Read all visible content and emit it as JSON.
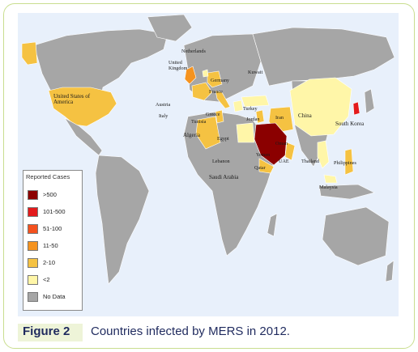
{
  "colors": {
    "gt500": "#8b0000",
    "c101_500": "#e31a1c",
    "c51_100": "#f4511e",
    "c11_50": "#f5931f",
    "c2_10": "#f5c242",
    "lt2": "#fff6a8",
    "no_data": "#a6a6a6",
    "ocean": "#e8f0fb",
    "caption_text": "#1f2a5e",
    "caption_bg": "#eef4d8",
    "frame_border": "#c9de8f"
  },
  "legend": {
    "title": "Reported Cases",
    "items": [
      {
        "label": ">500",
        "color": "#8b0000"
      },
      {
        "label": "101-500",
        "color": "#e31a1c"
      },
      {
        "label": "51-100",
        "color": "#f4511e"
      },
      {
        "label": "11-50",
        "color": "#f5931f"
      },
      {
        "label": "2-10",
        "color": "#f5c242"
      },
      {
        "label": "<2",
        "color": "#fff6a8"
      },
      {
        "label": "No Data",
        "color": "#a6a6a6"
      }
    ]
  },
  "labels": {
    "usa": "United States of America",
    "netherlands": "Netherlands",
    "uk": "United Kingdom",
    "germany": "Germany",
    "france": "France",
    "austria": "Austria",
    "italy": "Italy",
    "greece": "Greece",
    "tunisia": "Tunisia",
    "algeria": "Algeria",
    "egypt": "Egypt",
    "lebanon": "Lebanon",
    "turkey": "Turkey",
    "jordan": "Jordan",
    "kuwait": "Kuwait",
    "iran": "Iran",
    "oman": "Oman",
    "yemen": "Yemen",
    "uae": "UAE",
    "qatar": "Qatar",
    "saudi_arabia": "Saudi Arabia",
    "china": "China",
    "south_korea": "South Korea",
    "thailand": "Thailand",
    "philippines": "Philippines",
    "malaysia": "Malaysia"
  },
  "caption": {
    "label": "Figure 2",
    "text": "Countries infected by MERS in 2012."
  }
}
